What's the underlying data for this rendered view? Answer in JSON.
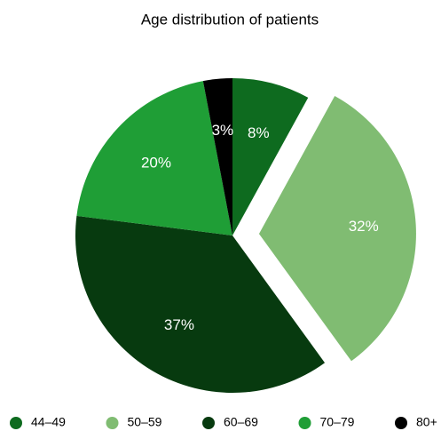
{
  "chart_data": {
    "type": "pie",
    "title": "Age distribution of patients",
    "categories": [
      "44–49",
      "50–59",
      "60–69",
      "70–79",
      "80+"
    ],
    "values": [
      8,
      32,
      37,
      20,
      3
    ],
    "value_labels": [
      "8%",
      "32%",
      "37%",
      "20%",
      "3%"
    ],
    "colors": [
      "#0e6b1f",
      "#80bc72",
      "#073a0f",
      "#1f9e36",
      "#000000"
    ],
    "exploded": "50–59",
    "legend": "bottom"
  }
}
